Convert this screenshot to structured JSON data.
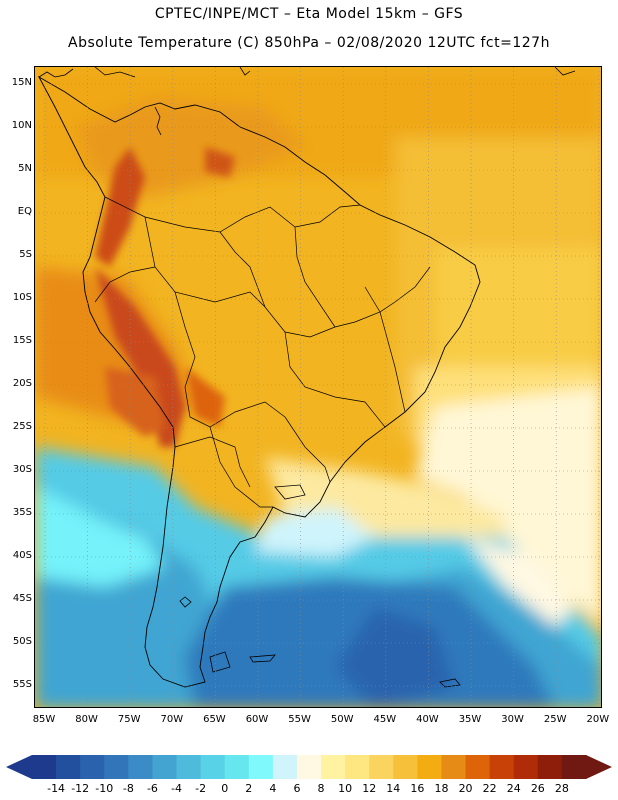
{
  "header": {
    "line1": "CPTEC/INPE/MCT –  Eta Model 15km – GFS",
    "line2": "Absolute Temperature (C) 850hPa – 02/08/2020 12UTC fct=127h"
  },
  "map": {
    "lat_labels": [
      "15N",
      "10N",
      "5N",
      "EQ",
      "5S",
      "10S",
      "15S",
      "20S",
      "25S",
      "30S",
      "35S",
      "40S",
      "45S",
      "50S",
      "55S"
    ],
    "lon_labels": [
      "85W",
      "80W",
      "75W",
      "70W",
      "65W",
      "60W",
      "55W",
      "50W",
      "45W",
      "40W",
      "35W",
      "30W",
      "25W",
      "20W"
    ]
  },
  "colorbar": {
    "labels": [
      "-14",
      "-12",
      "-10",
      "-8",
      "-6",
      "-4",
      "-2",
      "0",
      "2",
      "4",
      "6",
      "8",
      "10",
      "12",
      "14",
      "16",
      "18",
      "20",
      "22",
      "24",
      "26",
      "28"
    ],
    "colors": [
      "#1e3a8c",
      "#23509e",
      "#2a62ad",
      "#3276b9",
      "#3b8cc6",
      "#43a3d1",
      "#4ebbdc",
      "#58d2e6",
      "#66e6ef",
      "#7ff9fb",
      "#cff4fc",
      "#fff8e2",
      "#fff3a2",
      "#fee681",
      "#fbd45f",
      "#f7c03a",
      "#f3ad12",
      "#e78b17",
      "#dd6408",
      "#c84106",
      "#b02b07",
      "#8e1d0a",
      "#701812"
    ],
    "low_color": "#1e3a8c",
    "high_color": "#701812"
  }
}
